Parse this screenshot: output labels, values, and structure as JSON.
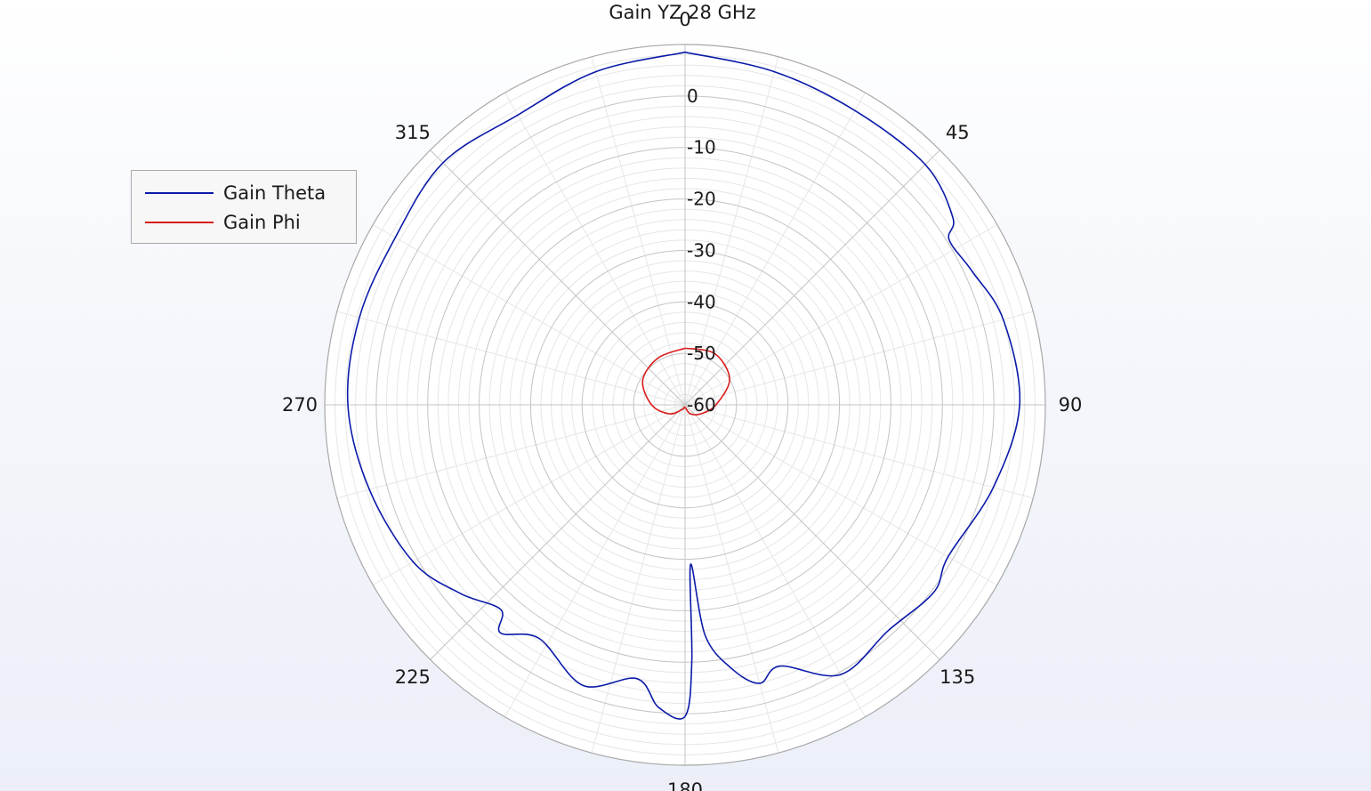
{
  "chart_data": {
    "type": "polar",
    "title": "Gain YZ 28 GHz",
    "angle_ticks": [
      0,
      45,
      90,
      135,
      180,
      225,
      270,
      315
    ],
    "angle_tick_labels": [
      "0",
      "45",
      "90",
      "135",
      "180",
      "225",
      "270",
      "315"
    ],
    "radial_range": [
      -60,
      10
    ],
    "radial_ticks": [
      0,
      -10,
      -20,
      -30,
      -40,
      -50,
      -60
    ],
    "radial_tick_labels": [
      "0",
      "-10",
      "-20",
      "-30",
      "-40",
      "-50",
      "-60"
    ],
    "angle_direction": "clockwise",
    "zero_angle_location": "top",
    "grid": true,
    "legend_position": "top-left",
    "series": [
      {
        "name": "Gain Theta",
        "color": "#0a1aa8",
        "angles": [
          0,
          15,
          30,
          45,
          55,
          58,
          65,
          75,
          90,
          105,
          120,
          127,
          138,
          150,
          160,
          165,
          170,
          175,
          178,
          178.5,
          180,
          185,
          190,
          200,
          212,
          219,
          222,
          230,
          240,
          255,
          270,
          285,
          300,
          315,
          330,
          345,
          360
        ],
        "values": [
          8.5,
          7.0,
          6.0,
          6.0,
          3.5,
          0.5,
          1.5,
          4.0,
          5.0,
          2.0,
          -1.0,
          0.5,
          -1.0,
          0.5,
          -6.0,
          -4.0,
          -8.0,
          -15.0,
          -29.0,
          -10.0,
          0.5,
          -1.0,
          -6.0,
          -2.0,
          -6.5,
          -3.0,
          -6.5,
          -3.0,
          1.0,
          3.5,
          5.5,
          5.5,
          5.0,
          6.5,
          5.0,
          7.0,
          8.5
        ]
      },
      {
        "name": "Gain Phi",
        "color": "#d91a1a",
        "angles": [
          0,
          30,
          60,
          90,
          120,
          150,
          180,
          210,
          240,
          270,
          300,
          330,
          360
        ],
        "values": [
          -49,
          -48.5,
          -50,
          -54,
          -56.5,
          -58,
          -59.5,
          -59,
          -56.5,
          -53.5,
          -50.5,
          -49.5,
          -49
        ]
      }
    ]
  }
}
